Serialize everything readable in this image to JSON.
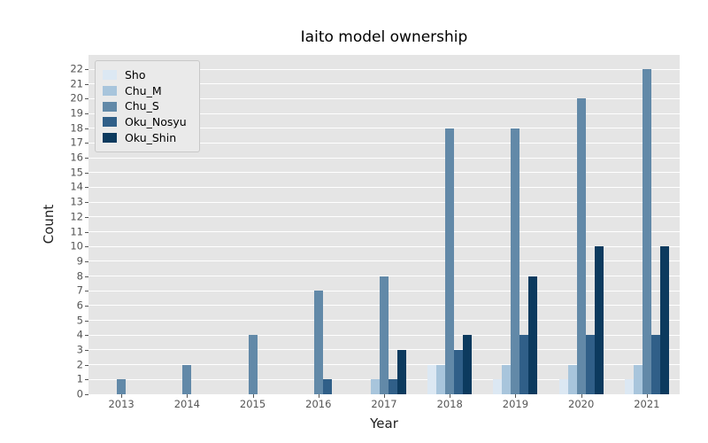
{
  "chart_data": {
    "type": "bar",
    "title": "Iaito model ownership",
    "xlabel": "Year",
    "ylabel": "Count",
    "categories": [
      "2013",
      "2014",
      "2015",
      "2016",
      "2017",
      "2018",
      "2019",
      "2020",
      "2021"
    ],
    "series": [
      {
        "name": "Sho",
        "color": "#dce8f3",
        "values": [
          0,
          0,
          0,
          0,
          0,
          2,
          1,
          1,
          1
        ]
      },
      {
        "name": "Chu_M",
        "color": "#a8c5dc",
        "values": [
          0,
          0,
          0,
          0,
          1,
          2,
          2,
          2,
          2
        ]
      },
      {
        "name": "Chu_S",
        "color": "#6289a8",
        "values": [
          1,
          2,
          4,
          7,
          8,
          18,
          18,
          20,
          22
        ]
      },
      {
        "name": "Oku_Nosyu",
        "color": "#305f88",
        "values": [
          0,
          0,
          0,
          1,
          1,
          3,
          4,
          4,
          4
        ]
      },
      {
        "name": "Oku_Shin",
        "color": "#0c3a5e",
        "values": [
          0,
          0,
          0,
          0,
          3,
          4,
          8,
          10,
          10
        ]
      }
    ],
    "ylim": [
      0,
      22
    ],
    "ytick_step": 1,
    "grid": "horizontal",
    "legend_position": "upper-left",
    "colors": {
      "plot_bg": "#e5e5e5",
      "grid": "#ffffff",
      "tick_label": "#555555",
      "title": "#000000"
    }
  }
}
